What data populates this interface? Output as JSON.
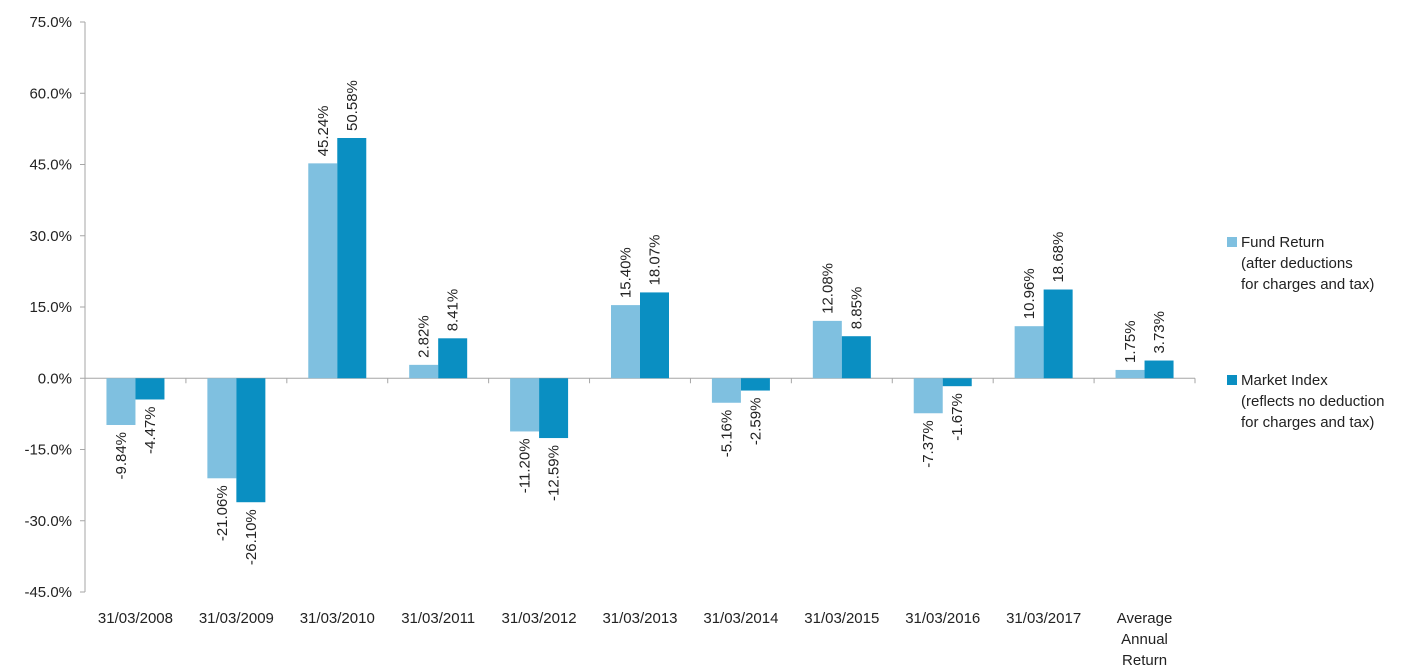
{
  "chart_data": {
    "type": "bar",
    "categories": [
      [
        "31/03/2008"
      ],
      [
        "31/03/2009"
      ],
      [
        "31/03/2010"
      ],
      [
        "31/03/2011"
      ],
      [
        "31/03/2012"
      ],
      [
        "31/03/2013"
      ],
      [
        "31/03/2014"
      ],
      [
        "31/03/2015"
      ],
      [
        "31/03/2016"
      ],
      [
        "31/03/2017"
      ],
      [
        "Average",
        "Annual",
        "Return"
      ]
    ],
    "series": [
      {
        "name": [
          "Fund Return",
          "(after deductions",
          "for charges and tax)"
        ],
        "color": "#7fc0e0",
        "values": [
          -9.84,
          -21.06,
          45.24,
          2.82,
          -11.2,
          15.4,
          -5.16,
          12.08,
          -7.37,
          10.96,
          1.75
        ],
        "labels": [
          "-9.84%",
          "-21.06%",
          "45.24%",
          "2.82%",
          "-11.20%",
          "15.40%",
          "-5.16%",
          "12.08%",
          "-7.37%",
          "10.96%",
          "1.75%"
        ]
      },
      {
        "name": [
          "Market Index",
          "(reflects no deduction",
          "for charges and tax)"
        ],
        "color": "#0a8fc2",
        "values": [
          -4.47,
          -26.1,
          50.58,
          8.41,
          -12.59,
          18.07,
          -2.59,
          8.85,
          -1.67,
          18.68,
          3.73
        ],
        "labels": [
          "-4.47%",
          "-26.10%",
          "50.58%",
          "8.41%",
          "-12.59%",
          "18.07%",
          "-2.59%",
          "8.85%",
          "-1.67%",
          "18.68%",
          "3.73%"
        ]
      }
    ],
    "yticks": [
      "75.0%",
      "60.0%",
      "45.0%",
      "30.0%",
      "15.0%",
      "0.0%",
      "-15.0%",
      "-30.0%",
      "-45.0%"
    ],
    "ylim": [
      -45,
      75
    ],
    "grid": false,
    "legend_position": "right",
    "axis_color": "#a6a6a6"
  }
}
